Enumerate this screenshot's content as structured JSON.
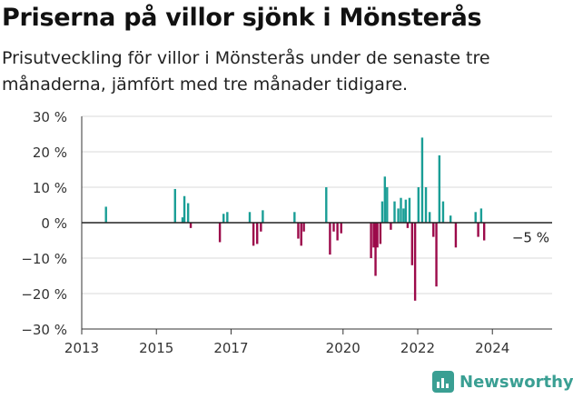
{
  "title": "Priserna på villor sjönk i Mönsterås",
  "subtitle": "Prisutveckling för villor i Mönsterås under de senaste tre månaderna, jämfört med tre månader tidigare.",
  "brand": "Newsworthy",
  "colors": {
    "positive": "#1a9e96",
    "negative": "#9c0a4a",
    "grid": "#d9d9d9",
    "axis": "#333333",
    "brand": "#3a9f93"
  },
  "chart_data": {
    "type": "bar",
    "xlabel": "",
    "ylabel": "",
    "ylim": [
      -30,
      30
    ],
    "xlim": [
      2013.0,
      2025.6
    ],
    "yticks": [
      30,
      20,
      10,
      0,
      -10,
      -20,
      -30
    ],
    "ytick_labels": [
      "30 %",
      "20 %",
      "10 %",
      "0 %",
      "−10 %",
      "−20 %",
      "−30 %"
    ],
    "xticks": [
      2013,
      2015,
      2017,
      2020,
      2022,
      2024
    ],
    "xtick_labels": [
      "2013",
      "2015",
      "2017",
      "2020",
      "2022",
      "2024"
    ],
    "grid": true,
    "annotation": {
      "text": "−5 %",
      "x": 2025.1,
      "y": -5
    },
    "series": [
      {
        "x": [
          2013.65,
          2015.5,
          2015.7,
          2015.75,
          2015.85,
          2015.92,
          2016.7,
          2016.8,
          2016.9,
          2017.5,
          2017.6,
          2017.7,
          2017.8,
          2017.85,
          2018.7,
          2018.8,
          2018.88,
          2018.95,
          2019.55,
          2019.65,
          2019.75,
          2019.85,
          2019.95,
          2020.75,
          2020.82,
          2020.87,
          2020.92,
          2021.0,
          2021.05,
          2021.12,
          2021.18,
          2021.28,
          2021.38,
          2021.48,
          2021.55,
          2021.62,
          2021.68,
          2021.73,
          2021.78,
          2021.85,
          2021.93,
          2022.02,
          2022.12,
          2022.22,
          2022.32,
          2022.42,
          2022.5,
          2022.58,
          2022.68,
          2022.88,
          2023.02,
          2023.55,
          2023.62,
          2023.7,
          2023.78,
          2024.72,
          2024.82,
          2024.9,
          2024.98
        ],
        "values": [
          4.5,
          9.5,
          1.5,
          7.5,
          5.5,
          -1.5,
          -5.5,
          2.5,
          3.0,
          3.0,
          -6.5,
          -6.0,
          -2.5,
          3.5,
          3.0,
          -4.5,
          -6.5,
          -2.5,
          10.0,
          -9.0,
          -2.5,
          -5.0,
          -3.0,
          -10.0,
          -7.0,
          -15.0,
          -7.0,
          -6.0,
          6.0,
          13.0,
          10.0,
          -2.0,
          6.0,
          4.0,
          7.0,
          4.0,
          6.5,
          -1.5,
          7.0,
          -12.0,
          -22.0,
          10.0,
          24.0,
          10.0,
          3.0,
          -4.0,
          -18.0,
          19.0,
          6.0,
          2.0,
          -7.0,
          3.0,
          -4.0,
          4.0,
          -5.0,
          0,
          0,
          0,
          0
        ]
      }
    ]
  }
}
